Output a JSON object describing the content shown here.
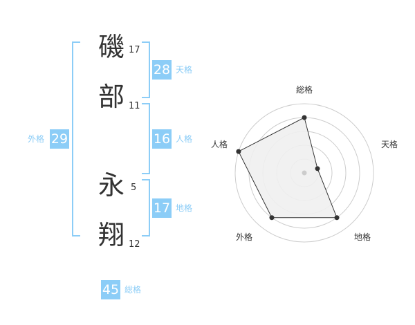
{
  "name_chars": [
    {
      "char": "磯",
      "strokes": "17"
    },
    {
      "char": "部",
      "strokes": "11"
    },
    {
      "char": "永",
      "strokes": "5"
    },
    {
      "char": "翔",
      "strokes": "12"
    }
  ],
  "kaku": {
    "tenkaku": {
      "value": "28",
      "label": "天格"
    },
    "jinkaku": {
      "value": "16",
      "label": "人格"
    },
    "chikaku": {
      "value": "17",
      "label": "地格"
    },
    "gaikaku": {
      "value": "29",
      "label": "外格"
    },
    "soukaku": {
      "value": "45",
      "label": "総格"
    }
  },
  "accent_color": "#8ccdf7",
  "chart_data": {
    "type": "radar",
    "axes": [
      "総格",
      "天格",
      "地格",
      "外格",
      "人格"
    ],
    "values": [
      4,
      1,
      4,
      4,
      5
    ],
    "range": [
      0,
      5
    ],
    "rings": 5
  }
}
